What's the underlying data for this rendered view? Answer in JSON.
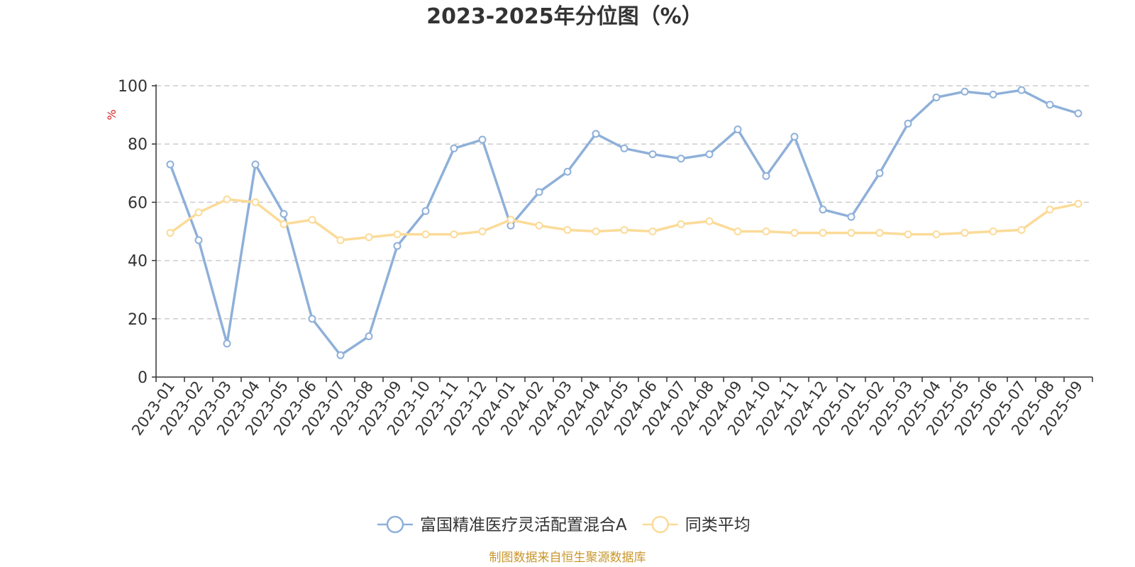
{
  "chart_data": {
    "type": "line",
    "title": "2023-2025年分位图（%）",
    "ylabel": "%",
    "xlabel": "",
    "ylim": [
      0,
      100
    ],
    "yticks": [
      0,
      20,
      40,
      60,
      80,
      100
    ],
    "grid": true,
    "legend_position": "bottom-center",
    "categories": [
      "2023-01",
      "2023-02",
      "2023-03",
      "2023-04",
      "2023-05",
      "2023-06",
      "2023-07",
      "2023-08",
      "2023-09",
      "2023-10",
      "2023-11",
      "2023-12",
      "2024-01",
      "2024-02",
      "2024-03",
      "2024-04",
      "2024-05",
      "2024-06",
      "2024-07",
      "2024-08",
      "2024-09",
      "2024-10",
      "2024-11",
      "2024-12",
      "2025-01",
      "2025-02",
      "2025-03",
      "2025-04",
      "2025-05",
      "2025-06",
      "2025-07",
      "2025-08",
      "2025-09"
    ],
    "series": [
      {
        "name": "富国精准医疗灵活配置混合A",
        "color": "#8eb0d9",
        "values": [
          73,
          47,
          11.5,
          73,
          56,
          20,
          7.5,
          14,
          45,
          57,
          78.5,
          81.5,
          52,
          63.5,
          70.5,
          83.5,
          78.5,
          76.5,
          75,
          76.5,
          85,
          69,
          82.5,
          57.5,
          55,
          70,
          87,
          96,
          98,
          97,
          98.5,
          93.5,
          90.5
        ]
      },
      {
        "name": "同类平均",
        "color": "#fbdb98",
        "values": [
          49.5,
          56.5,
          61,
          60,
          52.5,
          54,
          47,
          48,
          49,
          49,
          49,
          50,
          54,
          52,
          50.5,
          50,
          50.5,
          50,
          52.5,
          53.5,
          50,
          50,
          49.5,
          49.5,
          49.5,
          49.5,
          49,
          49,
          49.5,
          50,
          50.5,
          57.5,
          59.5
        ]
      }
    ]
  },
  "source": {
    "text": "制图数据来自恒生聚源数据库",
    "color": "#c8962c"
  },
  "colors": {
    "ylabel": "#e02020",
    "grid": "#cccccc",
    "axis": "#333333"
  }
}
